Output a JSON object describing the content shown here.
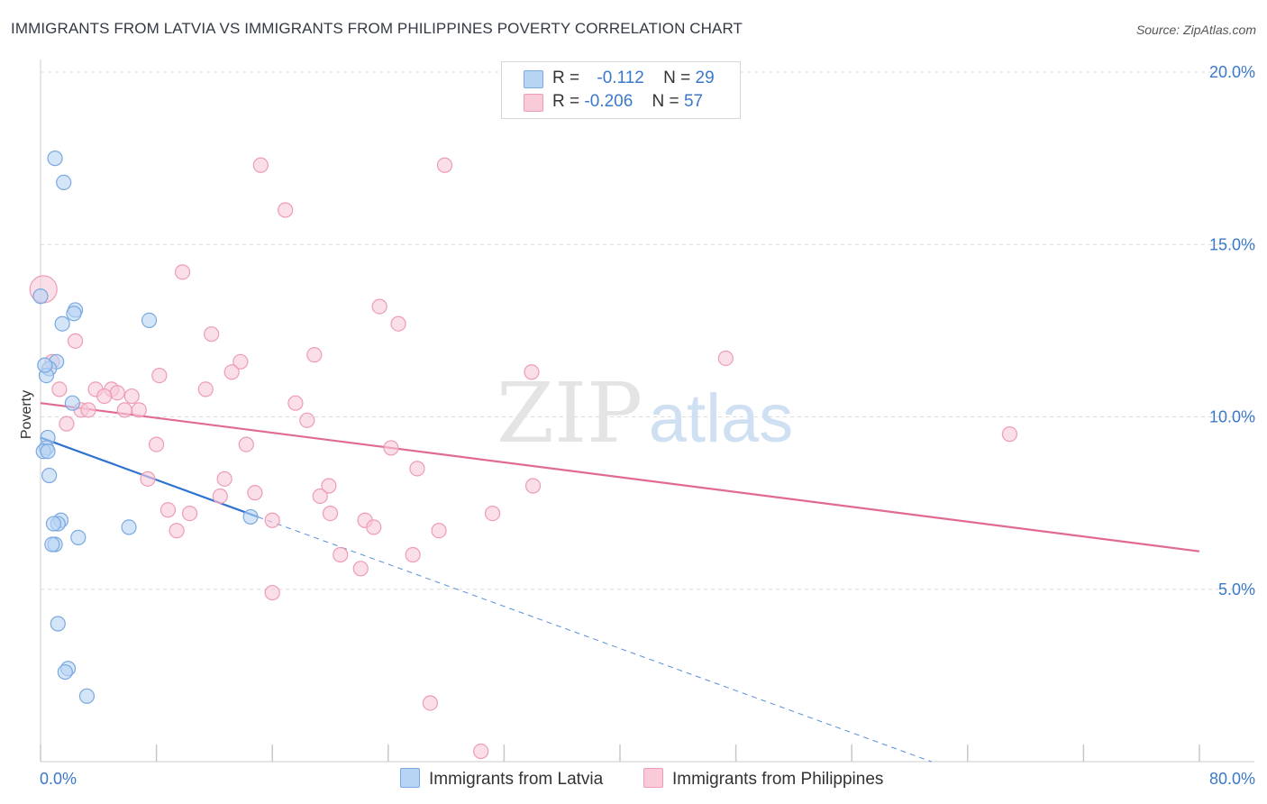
{
  "title": "IMMIGRANTS FROM LATVIA VS IMMIGRANTS FROM PHILIPPINES POVERTY CORRELATION CHART",
  "source": "Source: ZipAtlas.com",
  "watermark": {
    "zip": "ZIP",
    "atlas": "atlas"
  },
  "legend": {
    "rows": [
      {
        "r_label": "R =",
        "r_value": "-0.112",
        "n_label": "N =",
        "n_value": "29",
        "fill": "#b8d4f4",
        "stroke": "#7aa8e0"
      },
      {
        "r_label": "R =",
        "r_value": "-0.206",
        "n_label": "N =",
        "n_value": "57",
        "fill": "#f9cad8",
        "stroke": "#ee9bb4"
      }
    ]
  },
  "bottom_legend": {
    "series1": "Immigrants from Latvia",
    "series2": "Immigrants from Philippines"
  },
  "chart_data": {
    "type": "scatter",
    "title": "IMMIGRANTS FROM LATVIA VS IMMIGRANTS FROM PHILIPPINES POVERTY CORRELATION CHART",
    "xlabel": "",
    "ylabel": "Poverty",
    "xlim": [
      0,
      80
    ],
    "ylim": [
      0,
      20
    ],
    "x_tick_labels": [
      "0.0%",
      "80.0%"
    ],
    "y_ticks": [
      5,
      10,
      15,
      20
    ],
    "y_tick_labels": [
      "5.0%",
      "10.0%",
      "15.0%",
      "20.0%"
    ],
    "grid": true,
    "series": [
      {
        "name": "Immigrants from Latvia",
        "color": "#7aa8e0",
        "fill": "#b8d4f4",
        "line_color": "#2e72d2",
        "trend": {
          "x0": 0,
          "y0": 9.4,
          "x1": 15,
          "y1": 7.1,
          "dashed_to_x": 61.5,
          "dashed_to_y": 0
        },
        "points": [
          [
            1.0,
            17.5
          ],
          [
            1.6,
            16.8
          ],
          [
            0.0,
            13.5
          ],
          [
            2.4,
            13.1
          ],
          [
            2.3,
            13.0
          ],
          [
            1.5,
            12.7
          ],
          [
            7.5,
            12.8
          ],
          [
            1.1,
            11.6
          ],
          [
            0.6,
            11.4
          ],
          [
            0.4,
            11.2
          ],
          [
            2.2,
            10.4
          ],
          [
            0.5,
            9.4
          ],
          [
            0.4,
            9.1
          ],
          [
            0.2,
            9.0
          ],
          [
            0.6,
            8.3
          ],
          [
            1.4,
            7.0
          ],
          [
            1.2,
            6.9
          ],
          [
            0.9,
            6.9
          ],
          [
            6.1,
            6.8
          ],
          [
            2.6,
            6.5
          ],
          [
            1.0,
            6.3
          ],
          [
            0.8,
            6.3
          ],
          [
            14.5,
            7.1
          ],
          [
            1.2,
            4.0
          ],
          [
            1.9,
            2.7
          ],
          [
            1.7,
            2.6
          ],
          [
            3.2,
            1.9
          ],
          [
            0.3,
            11.5
          ],
          [
            0.5,
            9.0
          ]
        ]
      },
      {
        "name": "Immigrants from Philippines",
        "color": "#ee9bb4",
        "fill": "#f9cad8",
        "line_color": "#e06a93",
        "trend": {
          "x0": 0,
          "y0": 10.4,
          "x1": 80,
          "y1": 6.1
        },
        "points": [
          [
            15.2,
            17.3
          ],
          [
            27.9,
            17.3
          ],
          [
            16.9,
            16.0
          ],
          [
            9.8,
            14.2
          ],
          [
            0.2,
            13.7
          ],
          [
            23.4,
            13.2
          ],
          [
            24.7,
            12.7
          ],
          [
            11.8,
            12.4
          ],
          [
            2.4,
            12.2
          ],
          [
            18.9,
            11.8
          ],
          [
            47.3,
            11.7
          ],
          [
            0.8,
            11.6
          ],
          [
            13.8,
            11.6
          ],
          [
            13.2,
            11.3
          ],
          [
            8.2,
            11.2
          ],
          [
            33.9,
            11.3
          ],
          [
            1.3,
            10.8
          ],
          [
            3.8,
            10.8
          ],
          [
            4.9,
            10.8
          ],
          [
            5.3,
            10.7
          ],
          [
            4.4,
            10.6
          ],
          [
            6.3,
            10.6
          ],
          [
            11.4,
            10.8
          ],
          [
            17.6,
            10.4
          ],
          [
            2.8,
            10.2
          ],
          [
            3.3,
            10.2
          ],
          [
            5.8,
            10.2
          ],
          [
            6.8,
            10.2
          ],
          [
            18.4,
            9.9
          ],
          [
            1.8,
            9.8
          ],
          [
            8.0,
            9.2
          ],
          [
            14.2,
            9.2
          ],
          [
            24.2,
            9.1
          ],
          [
            66.9,
            9.5
          ],
          [
            26.0,
            8.5
          ],
          [
            7.4,
            8.2
          ],
          [
            12.7,
            8.2
          ],
          [
            19.9,
            8.0
          ],
          [
            34.0,
            8.0
          ],
          [
            12.4,
            7.7
          ],
          [
            14.8,
            7.8
          ],
          [
            19.3,
            7.7
          ],
          [
            8.8,
            7.3
          ],
          [
            10.3,
            7.2
          ],
          [
            20.0,
            7.2
          ],
          [
            31.2,
            7.2
          ],
          [
            22.4,
            7.0
          ],
          [
            16.0,
            7.0
          ],
          [
            23.0,
            6.8
          ],
          [
            9.4,
            6.7
          ],
          [
            27.5,
            6.7
          ],
          [
            20.7,
            6.0
          ],
          [
            25.7,
            6.0
          ],
          [
            22.1,
            5.6
          ],
          [
            16.0,
            4.9
          ],
          [
            26.9,
            1.7
          ],
          [
            30.4,
            0.3
          ]
        ]
      }
    ]
  }
}
